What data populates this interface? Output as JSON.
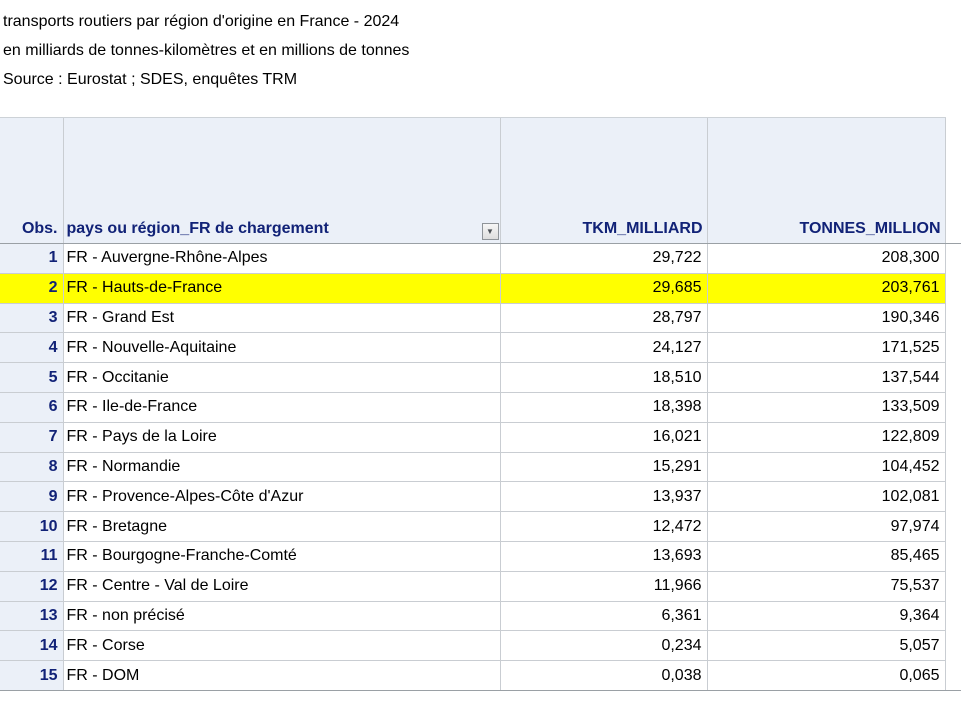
{
  "titles": {
    "line1": "transports routiers par région d'origine en France - 2024",
    "line2": "en milliards de tonnes-kilomètres et en millions de tonnes",
    "line3": "Source : Eurostat ; SDES, enquêtes TRM"
  },
  "table": {
    "columns": {
      "obs": "Obs.",
      "region": "pays ou région_FR de chargement",
      "tkm": "TKM_MILLIARD",
      "tonnes": "TONNES_MILLION"
    },
    "filter_icon": "▼",
    "colors": {
      "highlight": "#ffff00",
      "header_background": "#ebf0f8",
      "header_text": "#112277",
      "grid_border": "#c9cdd2",
      "strong_border": "#9aa0a5"
    },
    "rows": [
      {
        "obs": "1",
        "region": "FR - Auvergne-Rhône-Alpes",
        "tkm": "29,722",
        "tonnes": "208,300",
        "highlighted": false
      },
      {
        "obs": "2",
        "region": "FR - Hauts-de-France",
        "tkm": "29,685",
        "tonnes": "203,761",
        "highlighted": true
      },
      {
        "obs": "3",
        "region": "FR - Grand Est",
        "tkm": "28,797",
        "tonnes": "190,346",
        "highlighted": false
      },
      {
        "obs": "4",
        "region": "FR - Nouvelle-Aquitaine",
        "tkm": "24,127",
        "tonnes": "171,525",
        "highlighted": false
      },
      {
        "obs": "5",
        "region": "FR - Occitanie",
        "tkm": "18,510",
        "tonnes": "137,544",
        "highlighted": false
      },
      {
        "obs": "6",
        "region": "FR - Ile-de-France",
        "tkm": "18,398",
        "tonnes": "133,509",
        "highlighted": false
      },
      {
        "obs": "7",
        "region": "FR - Pays de la Loire",
        "tkm": "16,021",
        "tonnes": "122,809",
        "highlighted": false
      },
      {
        "obs": "8",
        "region": "FR - Normandie",
        "tkm": "15,291",
        "tonnes": "104,452",
        "highlighted": false
      },
      {
        "obs": "9",
        "region": "FR - Provence-Alpes-Côte d'Azur",
        "tkm": "13,937",
        "tonnes": "102,081",
        "highlighted": false
      },
      {
        "obs": "10",
        "region": "FR - Bretagne",
        "tkm": "12,472",
        "tonnes": "97,974",
        "highlighted": false
      },
      {
        "obs": "11",
        "region": "FR - Bourgogne-Franche-Comté",
        "tkm": "13,693",
        "tonnes": "85,465",
        "highlighted": false
      },
      {
        "obs": "12",
        "region": "FR - Centre - Val de Loire",
        "tkm": "11,966",
        "tonnes": "75,537",
        "highlighted": false
      },
      {
        "obs": "13",
        "region": "FR - non précisé",
        "tkm": "6,361",
        "tonnes": "9,364",
        "highlighted": false
      },
      {
        "obs": "14",
        "region": "FR - Corse",
        "tkm": "0,234",
        "tonnes": "5,057",
        "highlighted": false
      },
      {
        "obs": "15",
        "region": "FR - DOM",
        "tkm": "0,038",
        "tonnes": "0,065",
        "highlighted": false
      }
    ]
  }
}
